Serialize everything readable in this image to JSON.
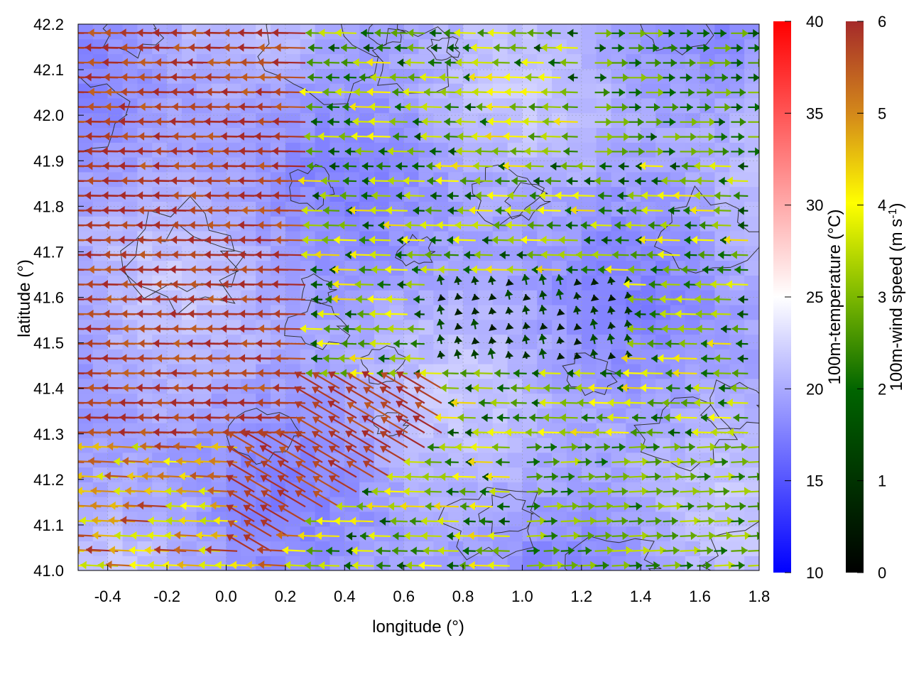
{
  "chart_data": {
    "type": "heatmap",
    "overlays": [
      "contour",
      "vector-field"
    ],
    "xlabel": "longitude (°)",
    "ylabel": "latitude (°)",
    "xlim": [
      -0.5,
      1.8
    ],
    "ylim": [
      41.0,
      42.2
    ],
    "x_ticks": [
      "-0.4",
      "-0.2",
      "0.0",
      "0.2",
      "0.4",
      "0.6",
      "0.8",
      "1.0",
      "1.2",
      "1.4",
      "1.6",
      "1.8"
    ],
    "y_ticks": [
      "41.0",
      "41.1",
      "41.2",
      "41.3",
      "41.4",
      "41.5",
      "41.6",
      "41.7",
      "41.8",
      "41.9",
      "42.0",
      "42.1",
      "42.2"
    ],
    "grid": true,
    "temperature_colorbar": {
      "label": "100m-temperature (°C)",
      "range": [
        10,
        40
      ],
      "ticks": [
        "10",
        "15",
        "20",
        "25",
        "30",
        "35",
        "40"
      ],
      "colors": [
        "#0000ff",
        "#ffffff",
        "#ff0000"
      ]
    },
    "wind_colorbar": {
      "label": "100m-wind speed (m s",
      "label_superscript": "-1",
      "label_suffix": ")",
      "range": [
        0,
        6
      ],
      "ticks": [
        "0",
        "1",
        "2",
        "3",
        "4",
        "5",
        "6"
      ],
      "colors": [
        "#000000",
        "#006400",
        "#7cb800",
        "#ffff00",
        "#d48a1a",
        "#a52a2a"
      ]
    },
    "temperature_field_range": [
      17,
      23
    ],
    "wind_regions": [
      {
        "area": "western flank (lon -0.5 to 0.3, lat 41.3-42.2)",
        "direction": "westward",
        "speed_m_s": 6
      },
      {
        "area": "south-west diagonal band (lon 0.1 to 0.7, lat 41.0-41.4)",
        "direction": "north-westward",
        "speed_m_s": 6
      },
      {
        "area": "central (lon 0.4 to 1.2, lat 41.4-41.9)",
        "direction": "westward",
        "speed_m_s": 2
      },
      {
        "area": "eastern (lon 1.0 to 1.8, lat 41.0-41.3)",
        "direction": "eastward",
        "speed_m_s": 2.5
      },
      {
        "area": "north-east (lon 1.2 to 1.8, lat 41.9-42.2)",
        "direction": "eastward",
        "speed_m_s": 2
      }
    ]
  }
}
